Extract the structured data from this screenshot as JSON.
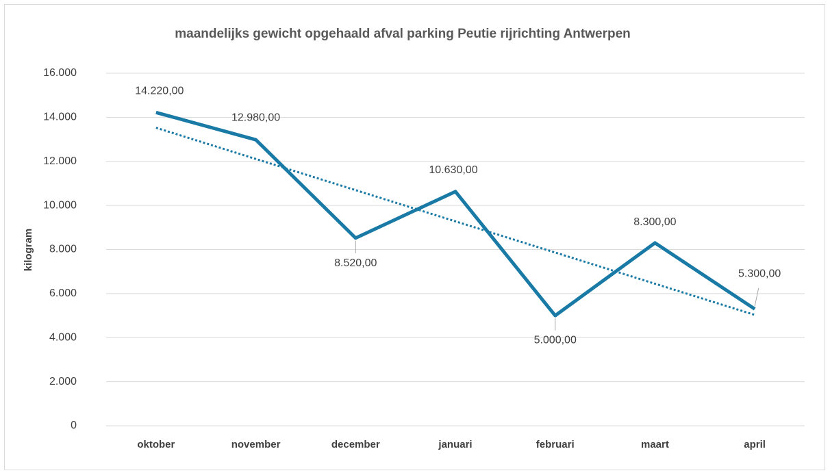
{
  "chart_data": {
    "type": "line",
    "title": "maandelijks gewicht opgehaald afval parking Peutie rijrichting Antwerpen",
    "ylabel": "kilogram",
    "categories": [
      "oktober",
      "november",
      "december",
      "januari",
      "februari",
      "maart",
      "april"
    ],
    "series": [
      {
        "name": "gewicht",
        "color": "#1a7aa6",
        "values": [
          14220,
          12980,
          8520,
          10630,
          5000,
          8300,
          5300
        ],
        "value_labels": [
          "14.220,00",
          "12.980,00",
          "8.520,00",
          "10.630,00",
          "5.000,00",
          "8.300,00",
          "5.300,00"
        ]
      }
    ],
    "trendline": "linear",
    "ylim": [
      0,
      16000
    ],
    "yticks": [
      0,
      {
        "value": 2000,
        "label": "2.000"
      },
      {
        "value": 4000,
        "label": "4.000"
      },
      {
        "value": 6000,
        "label": "6.000"
      },
      {
        "value": 8000,
        "label": "8.000"
      },
      {
        "value": 10000,
        "label": "10.000"
      },
      {
        "value": 12000,
        "label": "12.000"
      },
      {
        "value": 14000,
        "label": "14.000"
      },
      {
        "value": 16000,
        "label": "16.000"
      }
    ],
    "grid": true
  }
}
